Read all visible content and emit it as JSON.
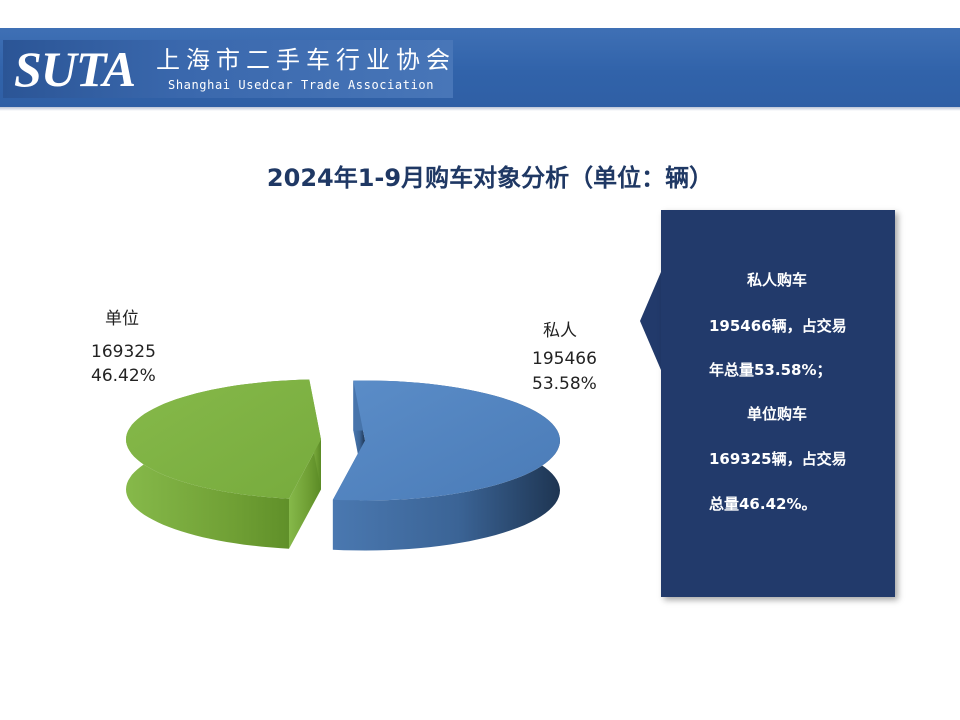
{
  "header": {
    "logo_mark": "SUTA",
    "org_name_cn": "上海市二手车行业协会",
    "org_name_en": "Shanghai Usedcar Trade Association"
  },
  "colors": {
    "header_blue": "#3163aa",
    "private_slice": "#4f81bd",
    "unit_slice": "#7ab03d",
    "panel_navy": "#223a6b",
    "title_navy": "#1f3864"
  },
  "chart_data": {
    "type": "pie",
    "title": "2024年1-9月购车对象分析（单位：辆）",
    "style": "3d-exploded",
    "slices": [
      {
        "name": "私人",
        "value": 195466,
        "percent_label": "53.58%",
        "color": "#4f81bd"
      },
      {
        "name": "单位",
        "value": 169325,
        "percent_label": "46.42%",
        "color": "#7ab03d"
      }
    ]
  },
  "info_panel": {
    "lines": [
      "私人购车",
      "195466辆，占交易",
      "年总量53.58%；",
      "单位购车",
      "169325辆，占交易",
      "总量46.42%。"
    ]
  }
}
